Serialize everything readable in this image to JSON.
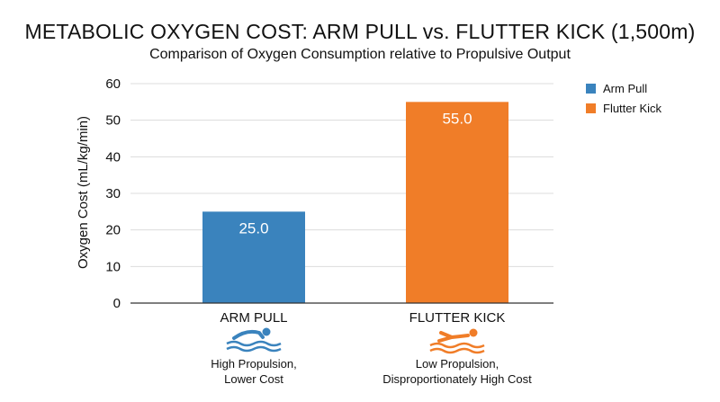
{
  "chart_data": {
    "type": "bar",
    "title": "METABOLIC OXYGEN COST: ARM PULL vs. FLUTTER KICK (1,500m)",
    "subtitle": "Comparison of Oxygen Consumption relative to Propulsive Output",
    "ylabel": "Oxygen Cost (mL/kg/min)",
    "ylim": [
      0,
      60
    ],
    "yticks": [
      0,
      10,
      20,
      30,
      40,
      50,
      60
    ],
    "categories": [
      "ARM PULL",
      "FLUTTER KICK"
    ],
    "values": [
      25.0,
      55.0
    ],
    "value_labels": [
      "25.0",
      "55.0"
    ],
    "colors": [
      "#3a83bd",
      "#f07d28"
    ],
    "grid": true,
    "legend": {
      "position": "top-right",
      "entries": [
        {
          "label": "Arm Pull",
          "color": "#3a83bd"
        },
        {
          "label": "Flutter Kick",
          "color": "#f07d28"
        }
      ]
    },
    "annotations": [
      {
        "icon": "swimmer-freestyle-icon",
        "lines": [
          "High Propulsion,",
          "Lower Cost"
        ]
      },
      {
        "icon": "swimmer-kicking-icon",
        "lines": [
          "Low Propulsion,",
          "Disproportionately High Cost"
        ]
      }
    ]
  }
}
